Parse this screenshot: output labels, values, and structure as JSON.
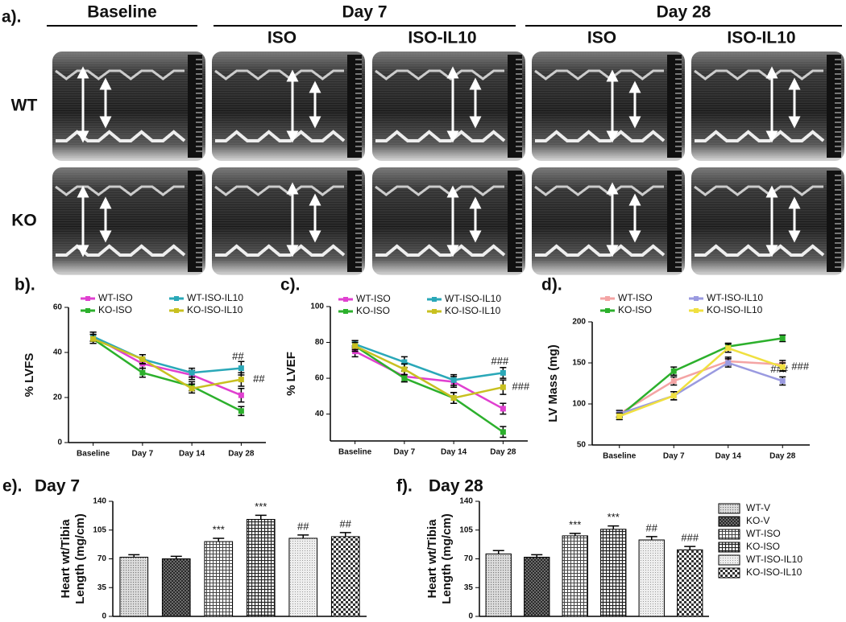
{
  "panel_a": {
    "label": "a).",
    "groups": [
      "Baseline",
      "Day 7",
      "Day 28"
    ],
    "columns": [
      "ISO",
      "ISO-IL10",
      "ISO",
      "ISO-IL10"
    ],
    "rows": [
      "WT",
      "KO"
    ]
  },
  "bar_legend": [
    "WT-V",
    "KO-V",
    "WT-ISO",
    "KO-ISO",
    "WT-ISO-IL10",
    "KO-ISO-IL10"
  ],
  "chart_data": [
    {
      "type": "line",
      "label": "b).",
      "ylabel": "% LVFS",
      "categories": [
        "Baseline",
        "Day 7",
        "Day 14",
        "Day 28"
      ],
      "ylim": [
        0,
        60
      ],
      "yticks": [
        0,
        20,
        40,
        60
      ],
      "series": [
        {
          "name": "WT-ISO",
          "color": "#e040d0",
          "values": [
            47,
            35,
            30,
            21
          ],
          "errors": [
            2,
            2,
            2,
            3
          ],
          "annotations": [
            null,
            null,
            null,
            null
          ]
        },
        {
          "name": "KO-ISO",
          "color": "#2cb02c",
          "values": [
            46,
            31,
            25,
            14
          ],
          "errors": [
            2,
            2,
            2,
            2
          ],
          "annotations": [
            null,
            null,
            null,
            null
          ]
        },
        {
          "name": "WT-ISO-IL10",
          "color": "#2aa8b8",
          "values": [
            47,
            37,
            31,
            33
          ],
          "errors": [
            2,
            2,
            2,
            3
          ],
          "annotations": [
            null,
            null,
            null,
            "##"
          ]
        },
        {
          "name": "KO-ISO-IL10",
          "color": "#c8c020",
          "values": [
            46,
            37,
            24,
            28
          ],
          "errors": [
            2,
            2,
            2,
            3
          ],
          "annotations": [
            null,
            null,
            null,
            "##"
          ]
        }
      ]
    },
    {
      "type": "line",
      "label": "c).",
      "ylabel": "% LVEF",
      "categories": [
        "Baseline",
        "Day 7",
        "Day 14",
        "Day 28"
      ],
      "ylim": [
        25,
        100
      ],
      "yticks": [
        40,
        60,
        80,
        100
      ],
      "series": [
        {
          "name": "WT-ISO",
          "color": "#e040d0",
          "values": [
            75,
            61,
            58,
            43
          ],
          "errors": [
            3,
            3,
            3,
            3
          ],
          "annotations": [
            null,
            null,
            null,
            null
          ]
        },
        {
          "name": "KO-ISO",
          "color": "#2cb02c",
          "values": [
            78,
            60,
            49,
            30
          ],
          "errors": [
            3,
            2,
            3,
            3
          ],
          "annotations": [
            null,
            null,
            null,
            null
          ]
        },
        {
          "name": "WT-ISO-IL10",
          "color": "#2aa8b8",
          "values": [
            79,
            69,
            59,
            63
          ],
          "errors": [
            2,
            3,
            3,
            3
          ],
          "annotations": [
            null,
            null,
            null,
            "###"
          ]
        },
        {
          "name": "KO-ISO-IL10",
          "color": "#c8c020",
          "values": [
            78,
            65,
            49,
            55
          ],
          "errors": [
            2,
            3,
            3,
            4
          ],
          "annotations": [
            null,
            null,
            null,
            "###"
          ]
        }
      ]
    },
    {
      "type": "line",
      "label": "d).",
      "ylabel": "LV Mass (mg)",
      "categories": [
        "Baseline",
        "Day 7",
        "Day 14",
        "Day 28"
      ],
      "ylim": [
        50,
        200
      ],
      "yticks": [
        50,
        100,
        150,
        200
      ],
      "series": [
        {
          "name": "WT-ISO",
          "color": "#f4a4a4",
          "values": [
            88,
            128,
            152,
            148
          ],
          "errors": [
            4,
            5,
            5,
            5
          ],
          "annotations": [
            null,
            null,
            null,
            null
          ]
        },
        {
          "name": "KO-ISO",
          "color": "#2cb02c",
          "values": [
            85,
            140,
            170,
            180
          ],
          "errors": [
            4,
            5,
            4,
            4
          ],
          "annotations": [
            null,
            null,
            null,
            null
          ]
        },
        {
          "name": "WT-ISO-IL10",
          "color": "#9a9ae0",
          "values": [
            88,
            110,
            150,
            128
          ],
          "errors": [
            4,
            5,
            5,
            5
          ],
          "annotations": [
            null,
            null,
            null,
            "###"
          ]
        },
        {
          "name": "KO-ISO-IL10",
          "color": "#f0e040",
          "values": [
            85,
            110,
            168,
            145
          ],
          "errors": [
            4,
            5,
            5,
            5
          ],
          "annotations": [
            null,
            null,
            null,
            "###"
          ]
        }
      ]
    },
    {
      "type": "bar",
      "label": "e).",
      "title": "Day 7",
      "ylabel": [
        "Heart wt/Tibia",
        "Length (mg/cm)"
      ],
      "ylim": [
        0,
        140
      ],
      "yticks": [
        0,
        35,
        70,
        105,
        140
      ],
      "values": [
        72,
        70,
        91,
        118,
        95,
        97
      ],
      "errors": [
        3,
        3,
        4,
        5,
        4,
        5
      ],
      "annotations": [
        null,
        null,
        "***",
        "***",
        "##",
        "##"
      ]
    },
    {
      "type": "bar",
      "label": "f).",
      "title": "Day 28",
      "ylabel": [
        "Heart wt/Tibia",
        "Length (mg/cm)"
      ],
      "ylim": [
        0,
        140
      ],
      "yticks": [
        0,
        35,
        70,
        105,
        140
      ],
      "values": [
        76,
        72,
        98,
        106,
        93,
        81
      ],
      "errors": [
        4,
        3,
        3,
        4,
        4,
        4
      ],
      "annotations": [
        null,
        null,
        "***",
        "***",
        "##",
        "###"
      ]
    }
  ]
}
